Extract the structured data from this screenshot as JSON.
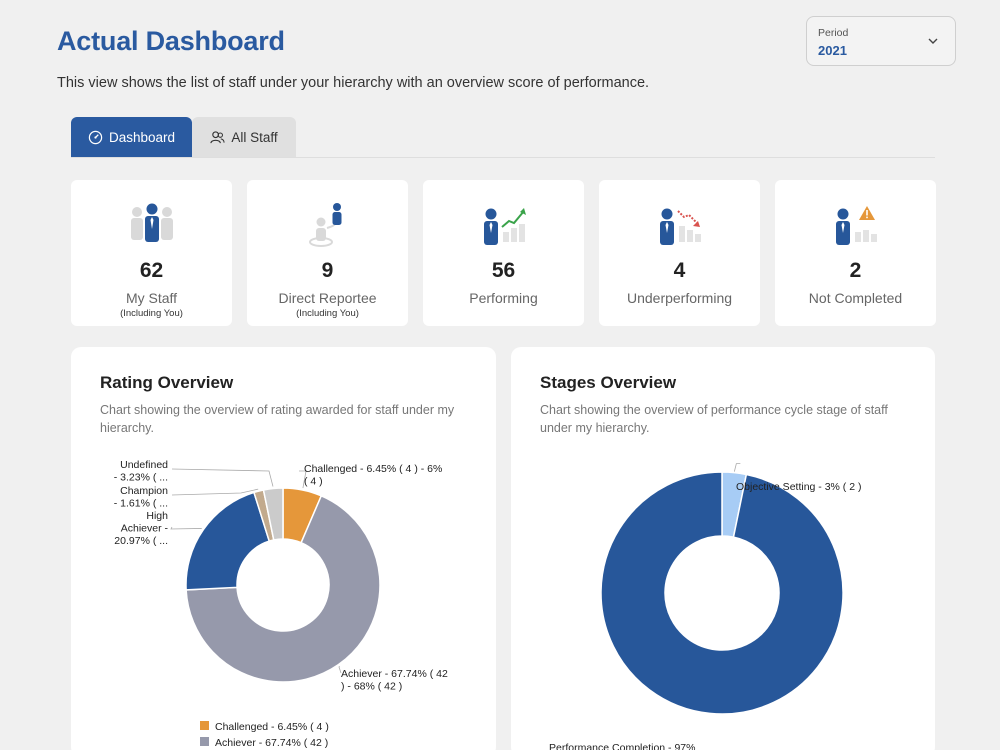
{
  "header": {
    "title": "Actual Dashboard",
    "subtitle": "This view shows the list of staff under your hierarchy with an overview score of performance."
  },
  "period": {
    "label": "Period",
    "value": "2021"
  },
  "tabs": [
    {
      "label": "Dashboard",
      "active": true,
      "icon": "gauge-icon"
    },
    {
      "label": "All Staff",
      "active": false,
      "icon": "users-icon"
    }
  ],
  "stats": [
    {
      "value": "62",
      "label": "My Staff",
      "sub": "(Including You)",
      "icon": "team-icon"
    },
    {
      "value": "9",
      "label": "Direct Reportee",
      "sub": "(Including You)",
      "icon": "reportee-icon"
    },
    {
      "value": "56",
      "label": "Performing",
      "sub": "",
      "icon": "performing-icon"
    },
    {
      "value": "4",
      "label": "Underperforming",
      "sub": "",
      "icon": "underperforming-icon"
    },
    {
      "value": "2",
      "label": "Not Completed",
      "sub": "",
      "icon": "not-completed-icon"
    }
  ],
  "colors": {
    "accent": "#2a5aa0",
    "challenged": "#e5973a",
    "achiever": "#9699ab",
    "high_achiever": "#27579a",
    "champion": "#c2aa8d",
    "undefined": "#cbcbcb",
    "objective_setting": "#a7ccf5",
    "performance_completion": "#27579a"
  },
  "rating_overview": {
    "title": "Rating Overview",
    "description": "Chart showing the overview of rating awarded for staff under my hierarchy.",
    "chart_data": {
      "type": "pie",
      "series": [
        {
          "name": "Challenged",
          "value": 4,
          "percent": 6.45
        },
        {
          "name": "Achiever",
          "value": 42,
          "percent": 67.74
        },
        {
          "name": "High Achiever",
          "value": 13,
          "percent": 20.97
        },
        {
          "name": "Champion",
          "value": 1,
          "percent": 1.61
        },
        {
          "name": "Undefined",
          "value": 2,
          "percent": 3.23
        }
      ],
      "labels": {
        "undefined": [
          "Undefined",
          "- 3.23% ( ..."
        ],
        "champion": [
          "Champion",
          "- 1.61% ( ..."
        ],
        "high_achiever": [
          "High",
          "Achiever -",
          "20.97% ( ..."
        ],
        "challenged": [
          "Challenged - 6.45% ( 4 ) - 6%",
          "( 4 )"
        ],
        "achiever": [
          "Achiever - 67.74% ( 42",
          ") - 68% ( 42 )"
        ]
      },
      "legend": [
        "Challenged - 6.45% ( 4 )",
        "Achiever - 67.74% ( 42 )"
      ],
      "legend_position": "bottom"
    }
  },
  "stages_overview": {
    "title": "Stages Overview",
    "description": "Chart showing the overview of performance cycle stage of staff under my hierarchy.",
    "chart_data": {
      "type": "pie",
      "series": [
        {
          "name": "Objective Setting",
          "value": 2,
          "percent": 3
        },
        {
          "name": "Performance Completion",
          "value": 60,
          "percent": 97
        }
      ],
      "labels": {
        "objective_setting": [
          "Objective Setting - 3% ( 2 )"
        ],
        "performance_completion": [
          "Performance Completion - 97%"
        ]
      }
    }
  }
}
